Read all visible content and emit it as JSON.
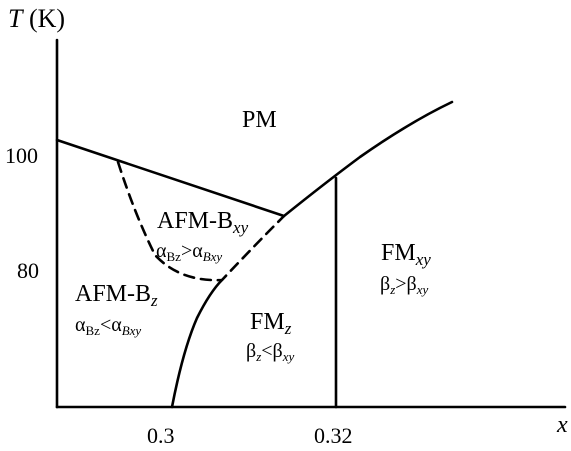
{
  "axes": {
    "y_label_var": "T",
    "y_label_unit": " (K)",
    "y_ticks": [
      "100",
      "80"
    ],
    "x_label": "x",
    "x_ticks": [
      "0.3",
      "0.32"
    ]
  },
  "regions": {
    "pm": {
      "label": "PM"
    },
    "afm_bxy": {
      "main": "AFM-B",
      "sub": "xy",
      "cond_a": "α",
      "cond_a_sub": "Bz",
      "cond_op": ">",
      "cond_b": "α",
      "cond_b_sub": "Bxy"
    },
    "afm_bz": {
      "main": "AFM-B",
      "sub": "z",
      "cond_a": "α",
      "cond_a_sub": "Bz",
      "cond_op": "<",
      "cond_b": "α",
      "cond_b_sub": "Bxy"
    },
    "fm_z": {
      "main": "FM",
      "sub": "z",
      "cond_a": "β",
      "cond_a_sub": "z",
      "cond_op": "<",
      "cond_b": "β",
      "cond_b_sub": "xy"
    },
    "fm_xy": {
      "main": "FM",
      "sub": "xy",
      "cond_a": "β",
      "cond_a_sub": "z",
      "cond_op": ">",
      "cond_b": "β",
      "cond_b_sub": "xy"
    }
  }
}
